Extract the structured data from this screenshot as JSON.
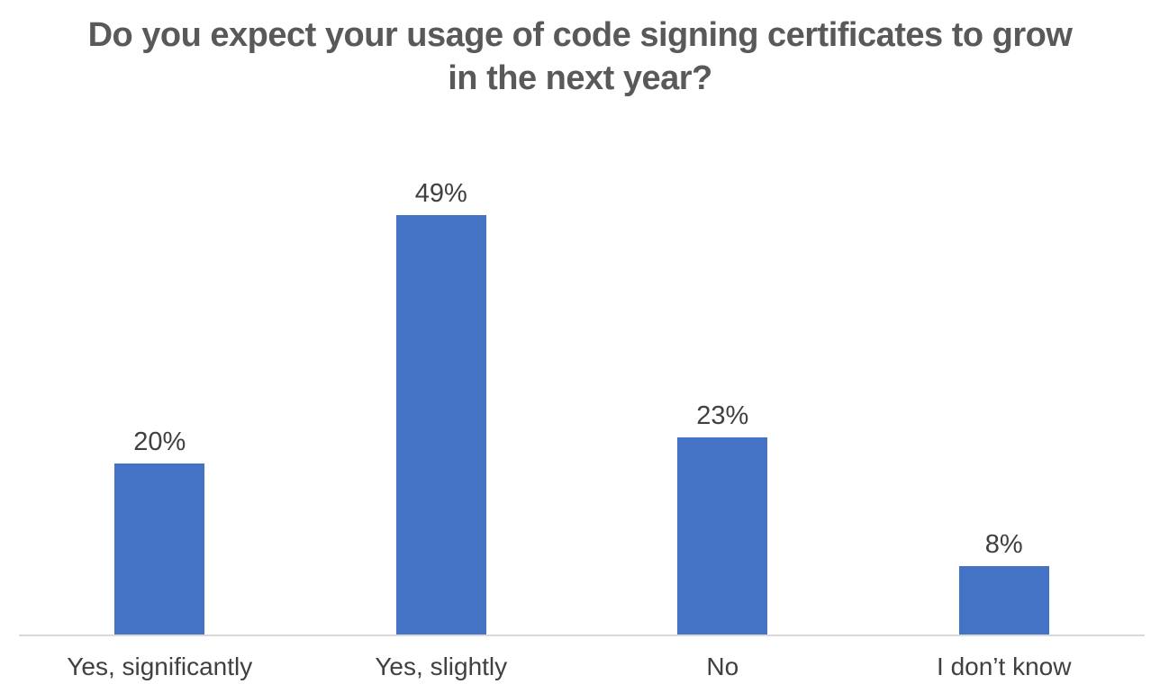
{
  "chart_data": {
    "type": "bar",
    "title": "Do you expect your usage of code signing certificates to grow\nin the next year?",
    "categories": [
      "Yes, significantly",
      "Yes, slightly",
      "No",
      "I don’t know"
    ],
    "values": [
      20,
      49,
      23,
      8
    ],
    "data_labels": [
      "20%",
      "49%",
      "23%",
      "8%"
    ],
    "xlabel": "",
    "ylabel": "",
    "ylim": [
      0,
      50
    ],
    "grid": false,
    "legend": false,
    "colors": {
      "bar": "#4472C4",
      "axis_line": "#D9D9D9",
      "title_text": "#595959",
      "label_text": "#404040"
    }
  }
}
